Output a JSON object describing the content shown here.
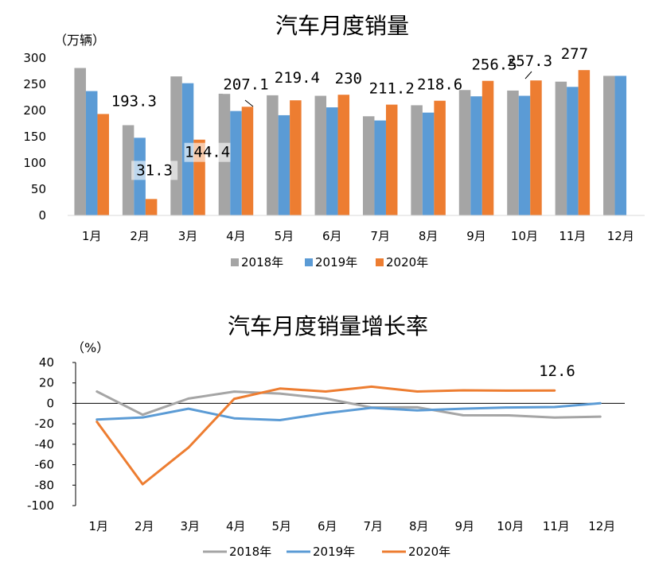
{
  "chart_data": [
    {
      "type": "bar",
      "title": "汽车月度销量",
      "ylabel": "（万辆）",
      "ylim": [
        0,
        300
      ],
      "yticks": [
        0,
        50,
        100,
        150,
        200,
        250,
        300
      ],
      "categories": [
        "1月",
        "2月",
        "3月",
        "4月",
        "5月",
        "6月",
        "7月",
        "8月",
        "9月",
        "10月",
        "11月",
        "12月"
      ],
      "series": [
        {
          "name": "2018年",
          "color": "#a5a5a5",
          "values": [
            281,
            172,
            265,
            232,
            229,
            228,
            189,
            210,
            239,
            238,
            255,
            266
          ]
        },
        {
          "name": "2019年",
          "color": "#5b9bd5",
          "values": [
            237,
            148,
            252,
            199,
            191,
            206,
            181,
            196,
            227,
            228,
            245,
            266
          ]
        },
        {
          "name": "2020年",
          "color": "#ed7d31",
          "values": [
            193.3,
            31.3,
            144.4,
            207.1,
            219.4,
            230,
            211.2,
            218.6,
            256.5,
            257.3,
            277,
            null
          ]
        }
      ],
      "data_labels": [
        "193.3",
        "31.3",
        "144.4",
        "207.1",
        "219.4",
        "230",
        "211.2",
        "218.6",
        "256.5",
        "257.3",
        "277"
      ],
      "legend_position": "bottom",
      "grid": false
    },
    {
      "type": "line",
      "title": "汽车月度销量增长率",
      "ylabel": "（%）",
      "ylim": [
        -100,
        40
      ],
      "yticks": [
        -100,
        -80,
        -60,
        -40,
        -20,
        0,
        20,
        40
      ],
      "categories": [
        "1月",
        "2月",
        "3月",
        "4月",
        "5月",
        "6月",
        "7月",
        "8月",
        "9月",
        "10月",
        "11月",
        "12月"
      ],
      "series": [
        {
          "name": "2018年",
          "color": "#a5a5a5",
          "values": [
            11.6,
            -11.1,
            4.7,
            11.5,
            9.6,
            4.8,
            -4,
            -3.8,
            -11.6,
            -11.7,
            -13.9,
            -13
          ]
        },
        {
          "name": "2019年",
          "color": "#5b9bd5",
          "values": [
            -15.8,
            -13.8,
            -5.2,
            -14.6,
            -16.4,
            -9.6,
            -4.3,
            -6.9,
            -5.2,
            -4,
            -3.6,
            0.1
          ]
        },
        {
          "name": "2020年",
          "color": "#ed7d31",
          "values": [
            -18,
            -79.1,
            -43.3,
            4.4,
            14.5,
            11.6,
            16.4,
            11.6,
            12.8,
            12.5,
            12.6,
            null
          ]
        }
      ],
      "data_labels": [
        "12.6"
      ],
      "legend_position": "bottom",
      "grid": false
    }
  ]
}
